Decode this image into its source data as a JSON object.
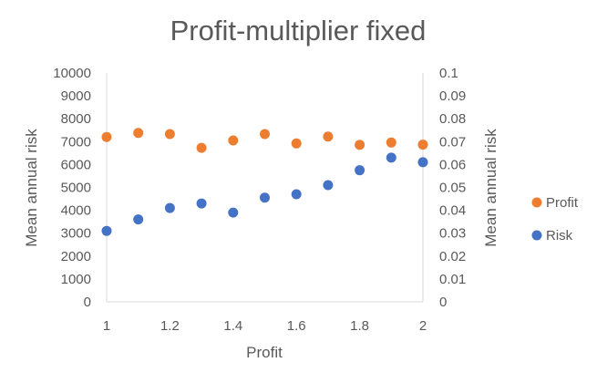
{
  "chart_data": {
    "type": "scatter",
    "title": "Profit-multiplier fixed",
    "xlabel": "Profit",
    "ylabel_left": "Mean annual risk",
    "ylabel_right": "Mean annual risk",
    "xlim": [
      1,
      2
    ],
    "ylim_left": [
      0,
      10000
    ],
    "ylim_right": [
      0,
      0.1
    ],
    "x_ticks": [
      "1",
      "1.2",
      "1.4",
      "1.6",
      "1.8",
      "2"
    ],
    "y_left_ticks": [
      "0",
      "1000",
      "2000",
      "3000",
      "4000",
      "5000",
      "6000",
      "7000",
      "8000",
      "9000",
      "10000"
    ],
    "y_right_ticks": [
      "0",
      "0.01",
      "0.02",
      "0.03",
      "0.04",
      "0.05",
      "0.06",
      "0.07",
      "0.08",
      "0.09",
      "0.1"
    ],
    "grid": false,
    "legend_position": "right",
    "series": [
      {
        "name": "Profit",
        "axis": "left",
        "color": "#ED7D31",
        "x": [
          1.0,
          1.1,
          1.2,
          1.3,
          1.4,
          1.5,
          1.6,
          1.7,
          1.8,
          1.9,
          2.0
        ],
        "y": [
          7200,
          7380,
          7330,
          6730,
          7050,
          7330,
          6920,
          7220,
          6860,
          6960,
          6870
        ]
      },
      {
        "name": "Risk",
        "axis": "right",
        "color": "#4472C4",
        "x": [
          1.0,
          1.1,
          1.2,
          1.3,
          1.4,
          1.5,
          1.6,
          1.7,
          1.8,
          1.9,
          2.0
        ],
        "y": [
          0.031,
          0.036,
          0.041,
          0.043,
          0.039,
          0.0455,
          0.047,
          0.051,
          0.0575,
          0.063,
          0.061
        ]
      }
    ]
  }
}
